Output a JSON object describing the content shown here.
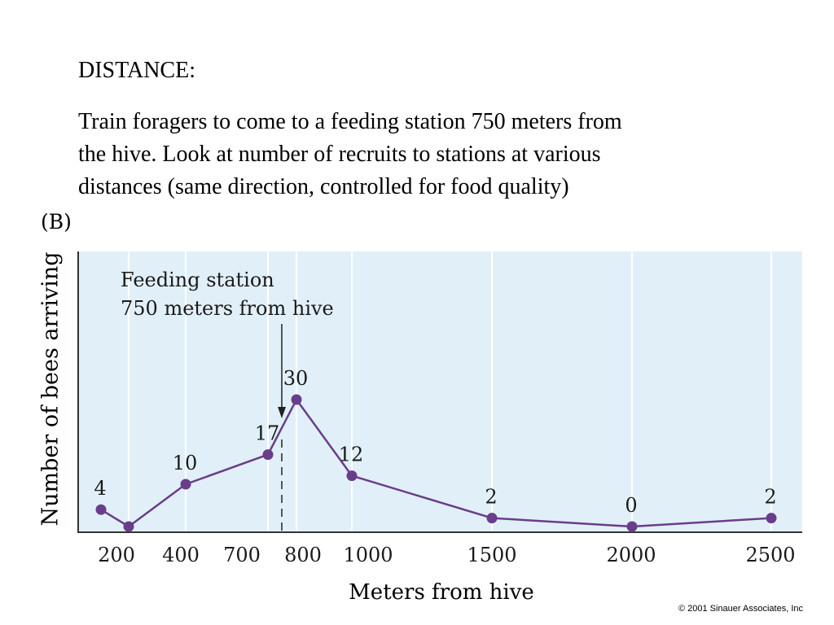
{
  "slide": {
    "heading": "DISTANCE:",
    "paragraph_lines": [
      "Train foragers to come to a feeding station 750 meters from",
      "the hive.  Look at number of recruits to stations at various",
      "distances (same direction, controlled for food quality)"
    ]
  },
  "figure": {
    "panel_label": "(B)",
    "copyright": "© 2001 Sinauer Associates, Inc"
  },
  "chart_data": {
    "type": "line",
    "xlabel": "Meters from hive",
    "ylabel": "Number of bees arriving",
    "x_scale": "categorical, unevenly spaced",
    "tick_labels": [
      "200",
      "400",
      "700",
      "800",
      "1000",
      "1500",
      "2000",
      "2500"
    ],
    "points": [
      {
        "x": "100",
        "y": 4,
        "label": "4"
      },
      {
        "x": "200",
        "y": 0,
        "label": ""
      },
      {
        "x": "400",
        "y": 10,
        "label": "10"
      },
      {
        "x": "700",
        "y": 17,
        "label": "17"
      },
      {
        "x": "800",
        "y": 30,
        "label": "30"
      },
      {
        "x": "1000",
        "y": 12,
        "label": "12"
      },
      {
        "x": "1500",
        "y": 2,
        "label": "2"
      },
      {
        "x": "2000",
        "y": 0,
        "label": "0"
      },
      {
        "x": "2500",
        "y": 2,
        "label": "2"
      }
    ],
    "ylim": [
      0,
      30
    ],
    "grid": true,
    "annotation": {
      "lines": [
        "Feeding station",
        "750 meters from hive"
      ],
      "x_value": 750
    },
    "colors": {
      "plot_background": "#e1f0f8",
      "series": "#6a3d8a",
      "grid": "#ffffff"
    }
  }
}
